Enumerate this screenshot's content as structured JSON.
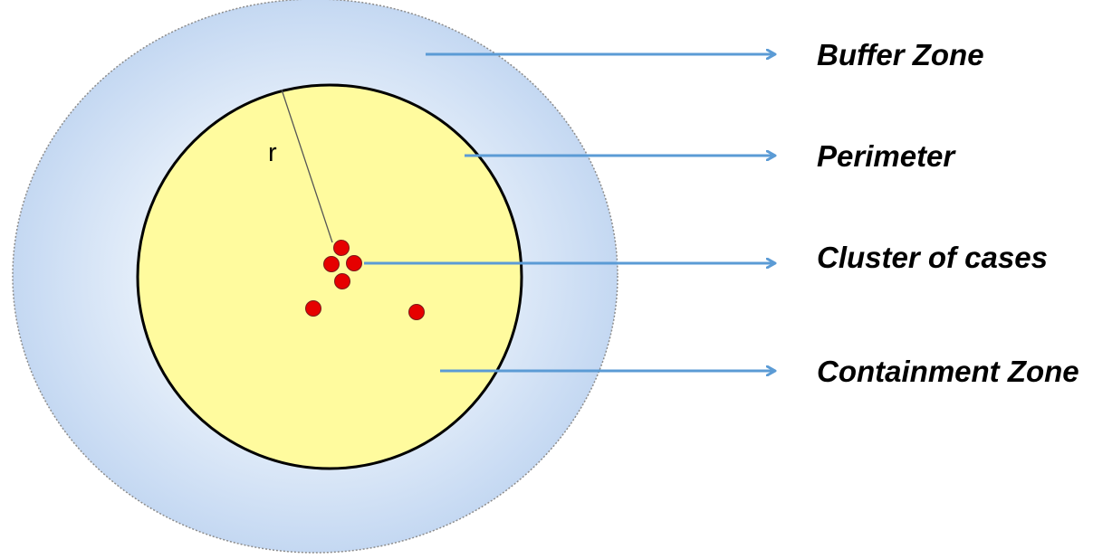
{
  "labels": {
    "buffer_zone": "Buffer Zone",
    "perimeter": "Perimeter",
    "cluster_of_cases": "Cluster of cases",
    "containment_zone": "Containment Zone",
    "radius": "r"
  },
  "colors": {
    "buffer_zone_fill": "#c6daf3",
    "buffer_zone_center": "#f3f7fd",
    "containment_zone_fill": "#fffb9e",
    "perimeter_stroke": "#000000",
    "case_fill": "#e60000",
    "arrow": "#5b9bd5"
  }
}
